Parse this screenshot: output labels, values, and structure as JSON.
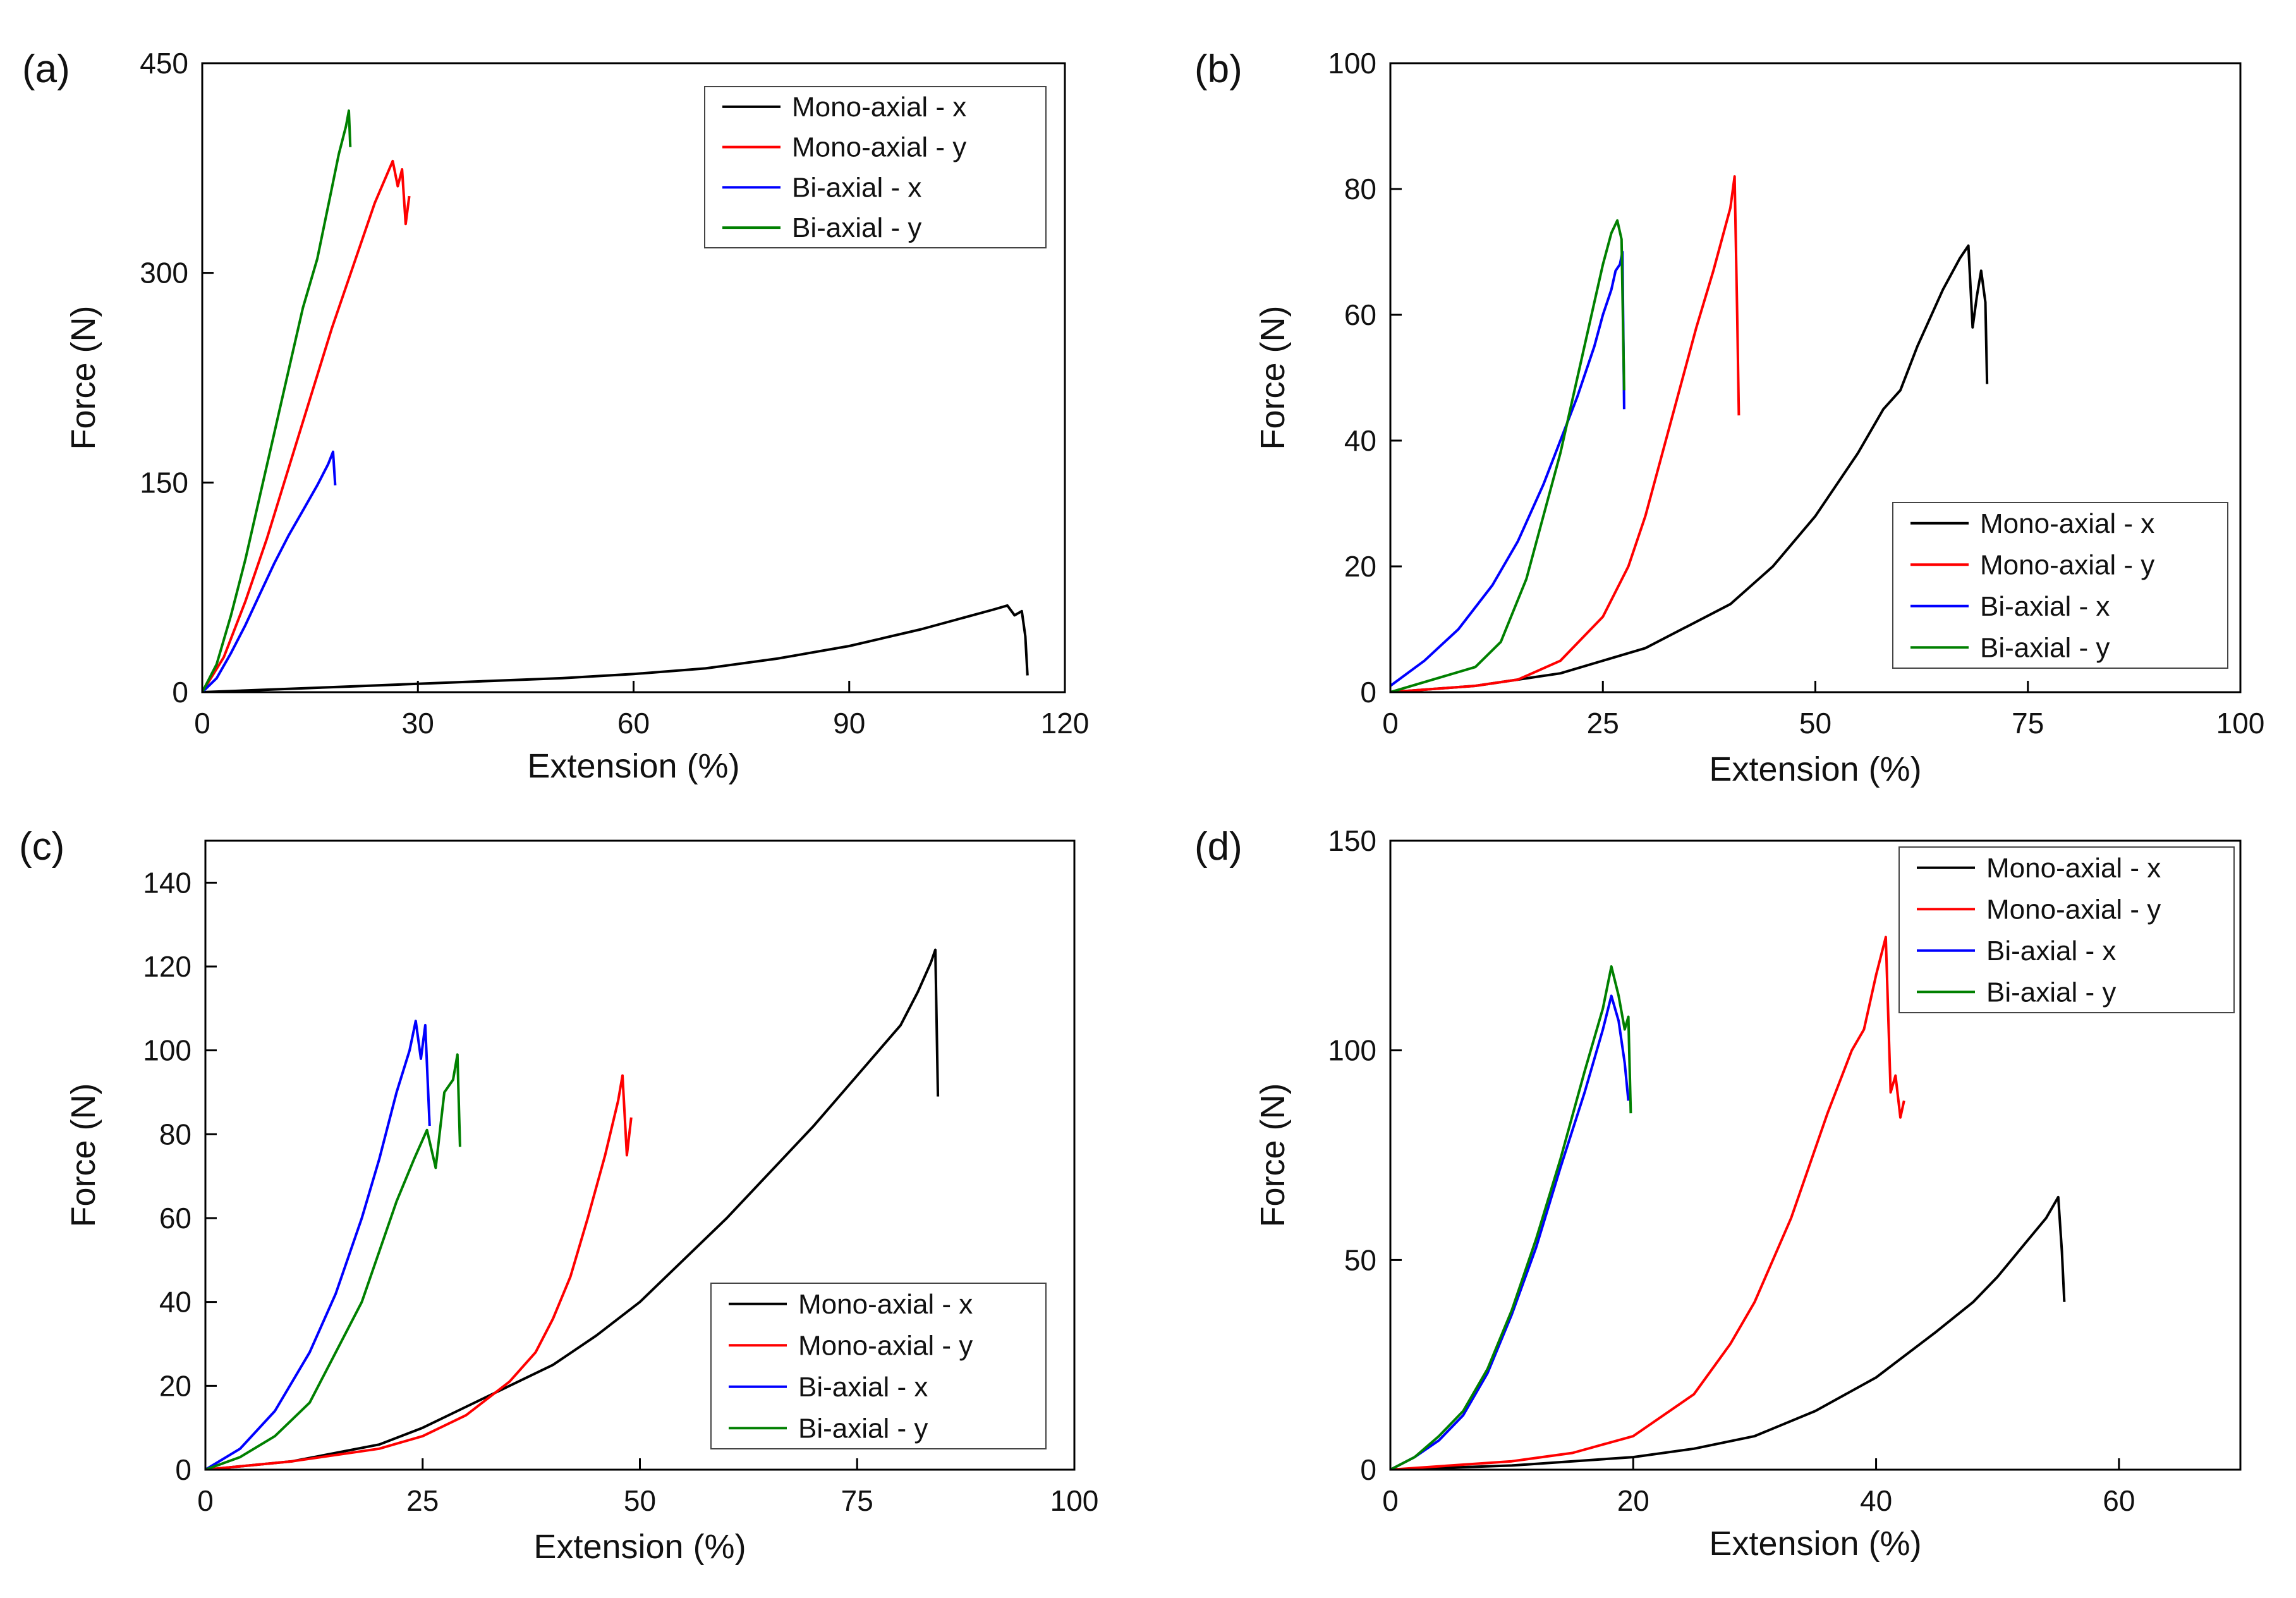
{
  "colors": {
    "mono_x": "#000000",
    "mono_y": "#ff0000",
    "bi_x": "#0000ff",
    "bi_y": "#008000",
    "axis": "#000000",
    "background": "#ffffff"
  },
  "chart_data": [
    {
      "type": "line",
      "panel_label": "(a)",
      "xlabel": "Extension (%)",
      "ylabel": "Force (N)",
      "xlim": [
        0,
        120
      ],
      "ylim": [
        0,
        450
      ],
      "xticks": [
        0,
        30,
        60,
        90,
        120
      ],
      "yticks": [
        0,
        150,
        300,
        450
      ],
      "grid": false,
      "legend_position": "top-right",
      "series": [
        {
          "name": "Mono-axial - x",
          "color_key": "mono_x",
          "x": [
            0,
            10,
            20,
            30,
            40,
            50,
            60,
            70,
            80,
            90,
            100,
            105,
            110,
            112,
            113,
            114,
            114.5,
            114.8
          ],
          "y": [
            0,
            2,
            4,
            6,
            8,
            10,
            13,
            17,
            24,
            33,
            45,
            52,
            59,
            62,
            55,
            58,
            40,
            12
          ]
        },
        {
          "name": "Mono-axial - y",
          "color_key": "mono_y",
          "x": [
            0,
            3,
            6,
            9,
            12,
            15,
            18,
            21,
            24,
            26.5,
            27.2,
            27.8,
            28.3,
            28.8
          ],
          "y": [
            0,
            25,
            65,
            110,
            160,
            210,
            260,
            305,
            350,
            380,
            362,
            374,
            335,
            355
          ]
        },
        {
          "name": "Bi-axial - x",
          "color_key": "bi_x",
          "x": [
            0,
            2,
            4,
            6,
            8,
            10,
            12,
            14,
            16,
            17.5,
            18.2,
            18.5
          ],
          "y": [
            0,
            10,
            28,
            48,
            70,
            92,
            112,
            130,
            148,
            163,
            172,
            148
          ]
        },
        {
          "name": "Bi-axial - y",
          "color_key": "bi_y",
          "x": [
            0,
            2,
            4,
            6,
            8,
            10,
            12,
            14,
            16,
            17,
            18,
            19,
            20,
            20.4,
            20.6
          ],
          "y": [
            0,
            20,
            55,
            95,
            140,
            185,
            230,
            275,
            310,
            335,
            360,
            385,
            405,
            416,
            390
          ]
        }
      ]
    },
    {
      "type": "line",
      "panel_label": "(b)",
      "xlabel": "Extension (%)",
      "ylabel": "Force (N)",
      "xlim": [
        0,
        100
      ],
      "ylim": [
        0,
        100
      ],
      "xticks": [
        0,
        25,
        50,
        75,
        100
      ],
      "yticks": [
        0,
        20,
        40,
        60,
        80,
        100
      ],
      "grid": false,
      "legend_position": "lower-right",
      "series": [
        {
          "name": "Mono-axial - x",
          "color_key": "mono_x",
          "x": [
            0,
            10,
            20,
            30,
            40,
            45,
            50,
            55,
            58,
            60,
            62,
            65,
            67,
            68,
            68.5,
            69,
            69.5,
            70,
            70.2
          ],
          "y": [
            0,
            1,
            3,
            7,
            14,
            20,
            28,
            38,
            45,
            48,
            55,
            64,
            69,
            71,
            58,
            63,
            67,
            62,
            49
          ]
        },
        {
          "name": "Mono-axial - y",
          "color_key": "mono_y",
          "x": [
            0,
            10,
            15,
            20,
            25,
            28,
            30,
            32,
            34,
            36,
            38,
            40,
            40.5,
            40.8,
            41
          ],
          "y": [
            0,
            1,
            2,
            5,
            12,
            20,
            28,
            38,
            48,
            58,
            67,
            77,
            82,
            60,
            44
          ]
        },
        {
          "name": "Bi-axial - x",
          "color_key": "bi_x",
          "x": [
            0,
            4,
            8,
            12,
            15,
            18,
            20,
            22,
            24,
            25,
            26,
            26.5,
            27,
            27.3,
            27.5
          ],
          "y": [
            1,
            5,
            10,
            17,
            24,
            33,
            40,
            47,
            55,
            60,
            64,
            67,
            68,
            70,
            45
          ]
        },
        {
          "name": "Bi-axial - y",
          "color_key": "bi_y",
          "x": [
            0,
            5,
            10,
            13,
            16,
            18,
            20,
            22,
            24,
            25,
            26,
            26.7,
            27.2,
            27.5
          ],
          "y": [
            0,
            2,
            4,
            8,
            18,
            28,
            38,
            50,
            62,
            68,
            73,
            75,
            72,
            48
          ]
        }
      ]
    },
    {
      "type": "line",
      "panel_label": "(c)",
      "xlabel": "Extension (%)",
      "ylabel": "Force (N)",
      "xlim": [
        0,
        100
      ],
      "ylim": [
        0,
        150
      ],
      "xticks": [
        0,
        25,
        50,
        75,
        100
      ],
      "yticks": [
        0,
        20,
        40,
        60,
        80,
        100,
        120,
        140
      ],
      "grid": false,
      "legend_position": "lower-right",
      "series": [
        {
          "name": "Mono-axial - x",
          "color_key": "mono_x",
          "x": [
            0,
            10,
            20,
            25,
            30,
            35,
            40,
            45,
            50,
            55,
            60,
            65,
            70,
            75,
            80,
            82,
            83.5,
            84,
            84.3
          ],
          "y": [
            0,
            2,
            6,
            10,
            15,
            20,
            25,
            32,
            40,
            50,
            60,
            71,
            82,
            94,
            106,
            114,
            121,
            124,
            89
          ]
        },
        {
          "name": "Mono-axial - y",
          "color_key": "mono_y",
          "x": [
            0,
            10,
            20,
            25,
            30,
            35,
            38,
            40,
            42,
            44,
            46,
            47.5,
            48,
            48.5,
            49
          ],
          "y": [
            0,
            2,
            5,
            8,
            13,
            21,
            28,
            36,
            46,
            60,
            75,
            88,
            94,
            75,
            84
          ]
        },
        {
          "name": "Bi-axial - x",
          "color_key": "bi_x",
          "x": [
            0,
            4,
            8,
            12,
            15,
            18,
            20,
            22,
            23.5,
            24.2,
            24.8,
            25.3,
            25.8
          ],
          "y": [
            0,
            5,
            14,
            28,
            42,
            60,
            74,
            90,
            100,
            107,
            98,
            106,
            82
          ]
        },
        {
          "name": "Bi-axial - y",
          "color_key": "bi_y",
          "x": [
            0,
            4,
            8,
            12,
            15,
            18,
            20,
            22,
            24,
            25.5,
            26.5,
            27.5,
            28.5,
            29,
            29.3
          ],
          "y": [
            0,
            3,
            8,
            16,
            28,
            40,
            52,
            64,
            74,
            81,
            72,
            90,
            93,
            99,
            77
          ]
        }
      ]
    },
    {
      "type": "line",
      "panel_label": "(d)",
      "xlabel": "Extension (%)",
      "ylabel": "Force (N)",
      "xlim": [
        0,
        70
      ],
      "ylim": [
        0,
        150
      ],
      "xticks": [
        0,
        20,
        40,
        60
      ],
      "yticks": [
        0,
        50,
        100,
        150
      ],
      "grid": false,
      "legend_position": "top-right",
      "series": [
        {
          "name": "Mono-axial - x",
          "color_key": "mono_x",
          "x": [
            0,
            10,
            20,
            25,
            30,
            35,
            40,
            45,
            48,
            50,
            52,
            54,
            55,
            55.3,
            55.5
          ],
          "y": [
            0,
            1,
            3,
            5,
            8,
            14,
            22,
            33,
            40,
            46,
            53,
            60,
            65,
            52,
            40
          ]
        },
        {
          "name": "Mono-axial - y",
          "color_key": "mono_y",
          "x": [
            0,
            10,
            15,
            20,
            25,
            28,
            30,
            33,
            36,
            38,
            39,
            40,
            40.8,
            41.2,
            41.6,
            42,
            42.3
          ],
          "y": [
            0,
            2,
            4,
            8,
            18,
            30,
            40,
            60,
            85,
            100,
            105,
            118,
            127,
            90,
            94,
            84,
            88
          ]
        },
        {
          "name": "Bi-axial - x",
          "color_key": "bi_x",
          "x": [
            0,
            2,
            4,
            6,
            8,
            10,
            12,
            14,
            16,
            17.5,
            18.2,
            18.8,
            19.3,
            19.6
          ],
          "y": [
            0,
            3,
            7,
            13,
            23,
            37,
            53,
            72,
            90,
            105,
            113,
            107,
            97,
            88
          ]
        },
        {
          "name": "Bi-axial - y",
          "color_key": "bi_y",
          "x": [
            0,
            2,
            4,
            6,
            8,
            10,
            12,
            14,
            16,
            17.5,
            18.2,
            18.8,
            19.3,
            19.6,
            19.8
          ],
          "y": [
            0,
            3,
            8,
            14,
            24,
            38,
            55,
            74,
            95,
            110,
            120,
            113,
            105,
            108,
            85
          ]
        }
      ]
    }
  ]
}
